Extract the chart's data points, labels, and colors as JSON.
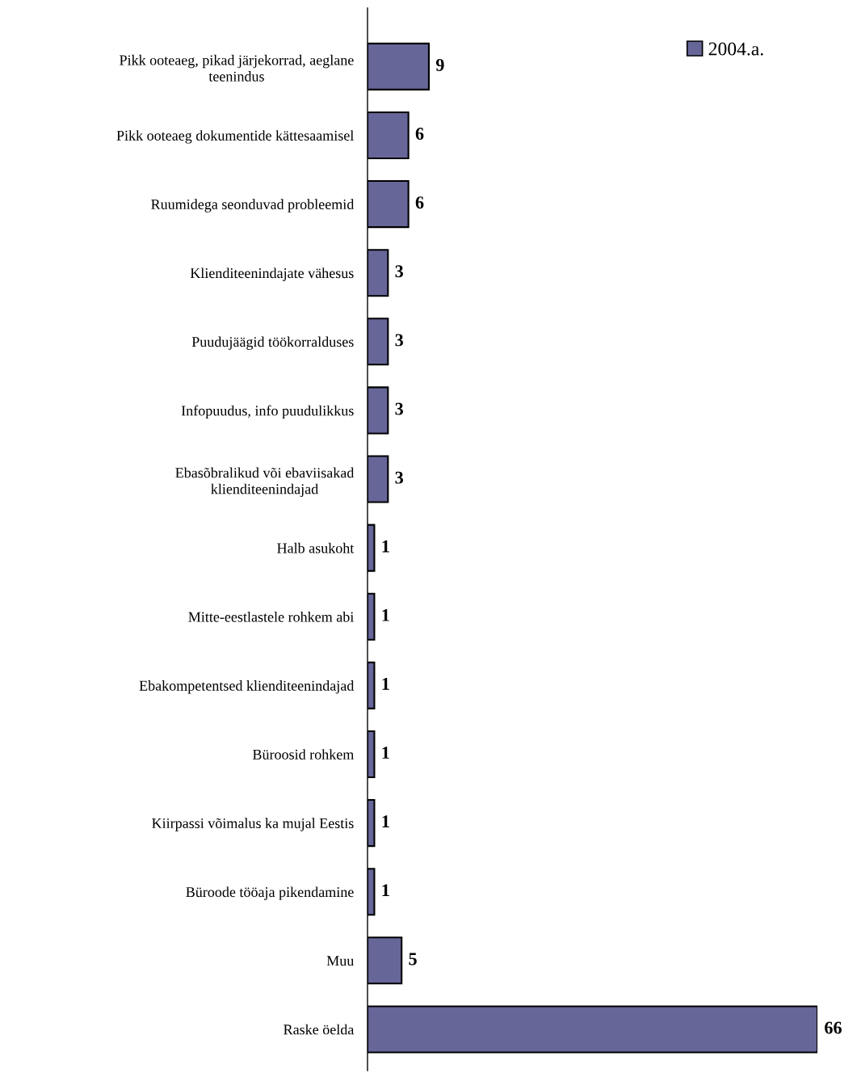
{
  "chart_data": {
    "type": "bar",
    "orientation": "horizontal",
    "categories": [
      "Pikk ooteaeg, pikad järjekorrad, aeglane\nteenindus",
      "Pikk ooteaeg dokumentide kättesaamisel",
      "Ruumidega seonduvad probleemid",
      "Klienditeenindajate vähesus",
      "Puudujäägid töökorralduses",
      "Infopuudus, info puudulikkus",
      "Ebasõbralikud või ebaviisakad\nklienditeenindajad",
      "Halb asukoht",
      "Mitte-eestlastele rohkem abi",
      "Ebakompetentsed klienditeenindajad",
      "Büroosid rohkem",
      "Kiirpassi võimalus ka mujal Eestis",
      "Büroode tööaja pikendamine",
      "Muu",
      "Raske öelda"
    ],
    "series": [
      {
        "name": "2004.a.",
        "color": "#666699",
        "values": [
          9,
          6,
          6,
          3,
          3,
          3,
          3,
          1,
          1,
          1,
          1,
          1,
          1,
          5,
          66
        ]
      }
    ],
    "data_labels": true,
    "legend": "top right",
    "grid": false
  }
}
